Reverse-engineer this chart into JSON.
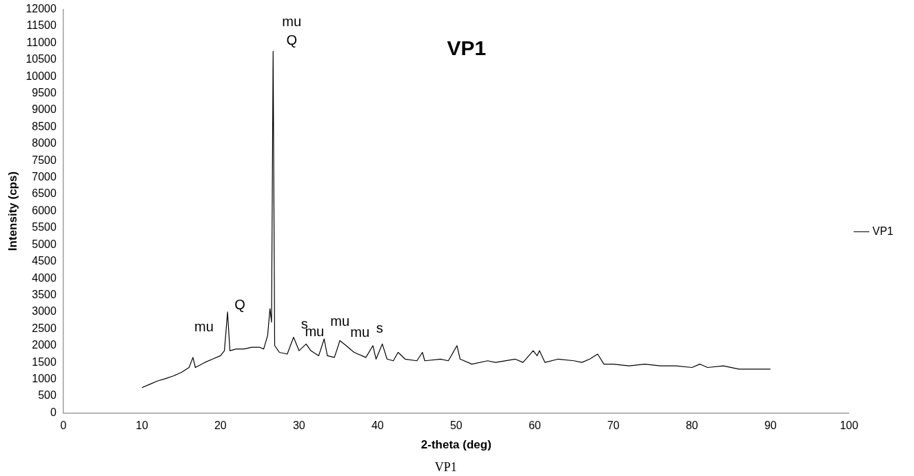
{
  "chart_data": {
    "type": "line",
    "title": "VP1",
    "xlabel": "2-theta (deg)",
    "ylabel": "Intensity (cps)",
    "x": [
      10,
      11,
      12,
      13,
      14,
      15,
      16,
      16.5,
      16.8,
      18,
      19,
      20,
      20.5,
      20.9,
      21.2,
      22,
      23,
      24,
      25,
      25.5,
      26,
      26.3,
      26.5,
      26.7,
      26.9,
      27.5,
      28.5,
      29.3,
      30,
      30.9,
      31.5,
      32.5,
      33.2,
      33.6,
      34.5,
      35.2,
      36,
      37,
      38.5,
      39.4,
      39.8,
      40.6,
      41.2,
      42,
      42.6,
      43.5,
      45,
      45.7,
      46,
      48,
      49,
      50.1,
      50.5,
      52,
      54,
      55,
      57.5,
      58.5,
      59.8,
      60.3,
      60.6,
      61.3,
      63,
      65,
      66,
      67,
      68,
      68.8,
      70,
      72,
      74,
      76,
      78,
      80,
      81,
      82,
      84,
      86,
      88,
      90
    ],
    "series": [
      {
        "name": "VP1",
        "color": "#000000",
        "values": [
          750,
          850,
          950,
          1020,
          1100,
          1200,
          1350,
          1650,
          1350,
          1500,
          1600,
          1700,
          1850,
          3000,
          1850,
          1900,
          1900,
          1950,
          1950,
          1900,
          2300,
          3100,
          2700,
          10750,
          2000,
          1800,
          1750,
          2250,
          1850,
          2050,
          1850,
          1700,
          2200,
          1700,
          1650,
          2150,
          2000,
          1800,
          1650,
          2000,
          1600,
          2050,
          1600,
          1550,
          1800,
          1600,
          1550,
          1800,
          1550,
          1600,
          1550,
          2000,
          1600,
          1450,
          1550,
          1500,
          1600,
          1500,
          1850,
          1700,
          1850,
          1500,
          1600,
          1550,
          1500,
          1600,
          1750,
          1450,
          1450,
          1400,
          1450,
          1400,
          1400,
          1350,
          1450,
          1350,
          1400,
          1300,
          1300,
          1300
        ]
      }
    ],
    "xlim": [
      0,
      100
    ],
    "xticks": [
      0,
      10,
      20,
      30,
      40,
      50,
      60,
      70,
      80,
      90,
      100
    ],
    "ylim": [
      0,
      12000
    ],
    "yticks": [
      0,
      500,
      1000,
      1500,
      2000,
      2500,
      3000,
      3500,
      4000,
      4500,
      5000,
      5500,
      6000,
      6500,
      7000,
      7500,
      8000,
      8500,
      9000,
      9500,
      10000,
      10500,
      11000,
      11500,
      12000
    ],
    "grid": false,
    "legend": "right",
    "marker": "none",
    "line_style": "solid",
    "annotations": [
      {
        "text": "mu",
        "x": 16.5,
        "y": 1650
      },
      {
        "text": "Q",
        "x": 20.9,
        "y": 3000
      },
      {
        "text": "mu",
        "x": 26.7,
        "y": 10750
      },
      {
        "text": "Q",
        "x": 26.7,
        "y": 10750
      },
      {
        "text": "s",
        "x": 29.3,
        "y": 2250
      },
      {
        "text": "mu",
        "x": 33.2,
        "y": 2200
      },
      {
        "text": "mu",
        "x": 35.2,
        "y": 2150
      },
      {
        "text": "mu",
        "x": 36,
        "y": 2000
      },
      {
        "text": "s",
        "x": 40.6,
        "y": 2050
      },
      "VP1"
    ]
  }
}
